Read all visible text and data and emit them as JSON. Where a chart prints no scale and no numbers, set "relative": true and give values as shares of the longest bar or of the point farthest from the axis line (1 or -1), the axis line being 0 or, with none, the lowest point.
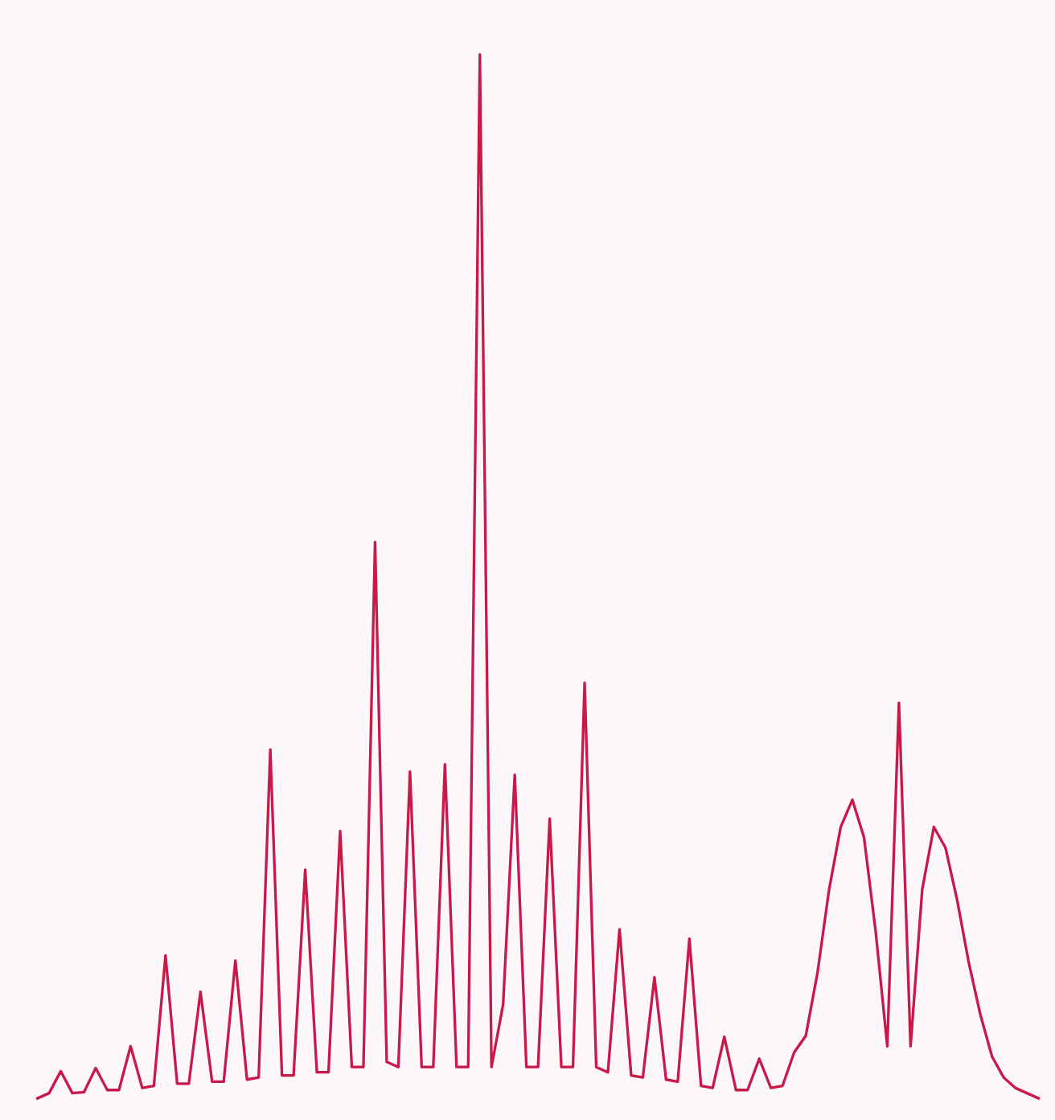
{
  "chart_data": {
    "type": "line",
    "relative": true,
    "categories": [
      null,
      null,
      null,
      null,
      null,
      null,
      null,
      null,
      null,
      null,
      null,
      null,
      null,
      null,
      null,
      null,
      null,
      null,
      null,
      null,
      null,
      null,
      null,
      null,
      null,
      null,
      null,
      null,
      null,
      null,
      null,
      null,
      null,
      null,
      null,
      null,
      null,
      null,
      null,
      null,
      null,
      null,
      null,
      null,
      null,
      null,
      null,
      null,
      null,
      null,
      null,
      null,
      null,
      null,
      null,
      null,
      null,
      null,
      null,
      null,
      null,
      null,
      null,
      null,
      null,
      null,
      null,
      null,
      null,
      null,
      null,
      null,
      null,
      null,
      null,
      null,
      null,
      null,
      null,
      null,
      null,
      null,
      null,
      null,
      null,
      null,
      null
    ],
    "series": [
      {
        "color": "#c8194a",
        "values": [
          0.0,
          0.005,
          0.026,
          0.005,
          0.006,
          0.029,
          0.008,
          0.008,
          0.05,
          0.01,
          0.012,
          0.137,
          0.014,
          0.014,
          0.102,
          0.016,
          0.016,
          0.132,
          0.018,
          0.02,
          0.334,
          0.022,
          0.022,
          0.219,
          0.025,
          0.025,
          0.256,
          0.03,
          0.03,
          0.533,
          0.035,
          0.03,
          0.313,
          0.03,
          0.03,
          0.32,
          0.03,
          0.03,
          1.0,
          0.03,
          0.09,
          0.31,
          0.03,
          0.03,
          0.268,
          0.03,
          0.03,
          0.398,
          0.03,
          0.025,
          0.162,
          0.022,
          0.02,
          0.116,
          0.018,
          0.016,
          0.153,
          0.012,
          0.01,
          0.059,
          0.008,
          0.008,
          0.038,
          0.01,
          0.012,
          0.044,
          0.06,
          0.12,
          0.2,
          0.26,
          0.286,
          0.25,
          0.16,
          0.05,
          0.379,
          0.05,
          0.2,
          0.26,
          0.24,
          0.19,
          0.13,
          0.08,
          0.04,
          0.02,
          0.01,
          0.005,
          0.0
        ]
      }
    ],
    "grid": false,
    "legend": false,
    "marker": "none",
    "line_style": "solid"
  }
}
